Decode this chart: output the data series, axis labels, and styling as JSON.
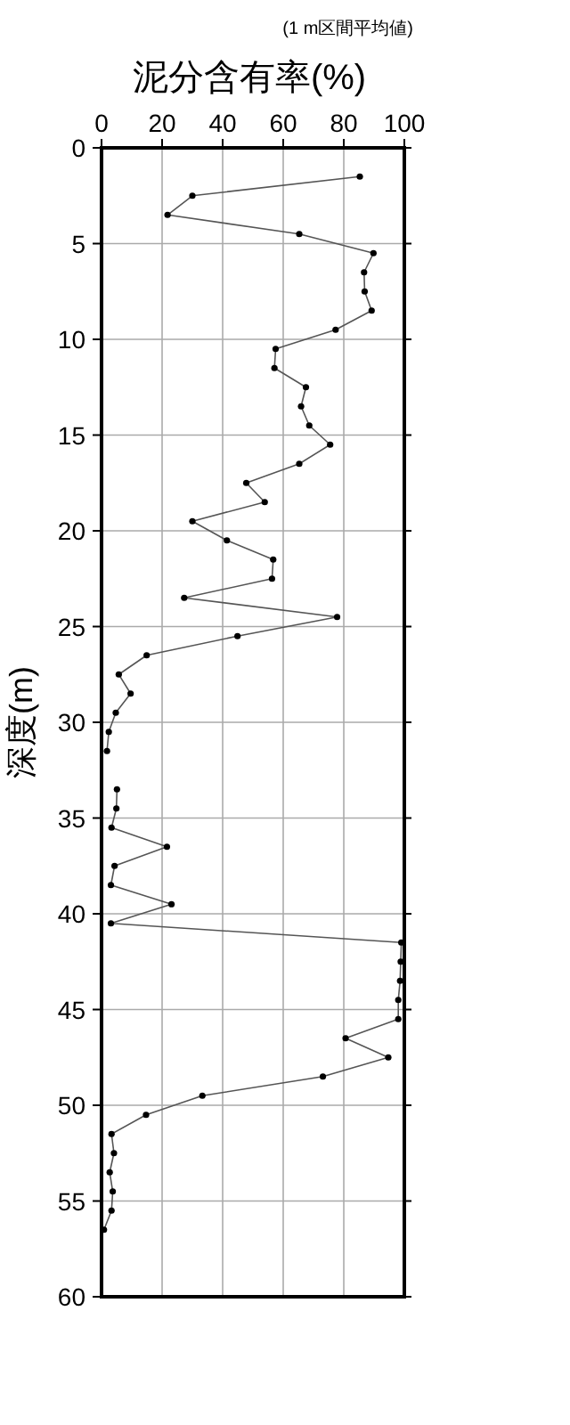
{
  "chart_data": {
    "type": "line",
    "title": "泥分含有率(%)",
    "subtitle": "(1 m区間平均値)",
    "ylabel": "深度(m)",
    "xlim": [
      0,
      100
    ],
    "xticks": [
      0,
      20,
      40,
      60,
      80,
      100
    ],
    "ylim": [
      60,
      0
    ],
    "yticks": [
      0,
      5,
      10,
      15,
      20,
      25,
      30,
      35,
      40,
      45,
      50,
      55,
      60
    ],
    "grid": true,
    "marker": "circle",
    "line_style": "solid",
    "series": [
      {
        "color": "#555555",
        "x": [
          85.3,
          30,
          21.8,
          65.3,
          89.8,
          86.7,
          86.9,
          89.2,
          77.3,
          57.5,
          57.1,
          67.5,
          65.9,
          68.6,
          75.5,
          65.3,
          47.8,
          53.9,
          30,
          41.4,
          56.7,
          56.3,
          27.3,
          77.8,
          44.9,
          14.9,
          5.7,
          9.6,
          4.7,
          2.4,
          1.8,
          null,
          5.1,
          4.9,
          3.3,
          21.6,
          4.3,
          3.1,
          23.1,
          3.1,
          99,
          98.8,
          98.6,
          98,
          98,
          80.6,
          94.7,
          73.1,
          33.3,
          14.7,
          3.3,
          4.1,
          2.7,
          3.7,
          3.3,
          0.8
        ],
        "values": [
          1.5,
          2.5,
          3.5,
          4.5,
          5.5,
          6.5,
          7.5,
          8.5,
          9.5,
          10.5,
          11.5,
          12.5,
          13.5,
          14.5,
          15.5,
          16.5,
          17.5,
          18.5,
          19.5,
          20.5,
          21.5,
          22.5,
          23.5,
          24.5,
          25.5,
          26.5,
          27.5,
          28.5,
          29.5,
          30.5,
          31.5,
          null,
          33.5,
          34.5,
          35.5,
          36.5,
          37.5,
          38.5,
          39.5,
          40.5,
          41.5,
          42.5,
          43.5,
          44.5,
          45.5,
          46.5,
          47.5,
          48.5,
          49.5,
          50.5,
          51.5,
          52.5,
          53.5,
          54.5,
          55.5,
          56.5
        ]
      }
    ]
  }
}
